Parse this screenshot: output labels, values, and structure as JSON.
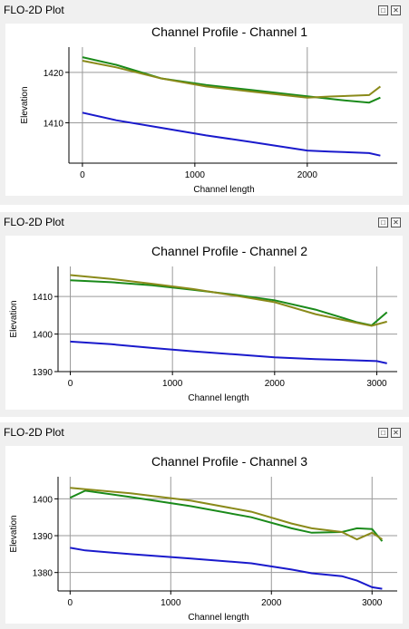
{
  "panels": [
    {
      "title": "FLO-2D Plot",
      "buttons": {
        "float_icon": "restore-icon",
        "close_icon": "close-icon"
      },
      "chart_data": {
        "type": "line",
        "title": "Channel Profile - Channel 1",
        "xlabel": "Channel length",
        "ylabel": "Elevation",
        "xlim": [
          -120,
          2800
        ],
        "ylim": [
          1402,
          1425
        ],
        "xticks": [
          0,
          1000,
          2000
        ],
        "yticks": [
          1410,
          1420
        ],
        "grid": true,
        "series": [
          {
            "color": "#1a8a1a",
            "x": [
              0,
              300,
              700,
              1100,
              1500,
              1900,
              2300,
              2550,
              2650
            ],
            "y": [
              1423,
              1421.5,
              1418.8,
              1417.5,
              1416.5,
              1415.5,
              1414.5,
              1414.0,
              1415.0
            ]
          },
          {
            "color": "#8a8a1a",
            "x": [
              0,
              300,
              700,
              1100,
              1500,
              2000,
              2200,
              2550,
              2650
            ],
            "y": [
              1422.3,
              1421.0,
              1418.8,
              1417.2,
              1416.2,
              1415.0,
              1415.2,
              1415.5,
              1417.2
            ]
          },
          {
            "color": "#1a1acc",
            "x": [
              0,
              300,
              700,
              1100,
              1500,
              2000,
              2200,
              2550,
              2650
            ],
            "y": [
              1412.0,
              1410.5,
              1409.0,
              1407.5,
              1406.2,
              1404.5,
              1404.3,
              1404.0,
              1403.5
            ]
          }
        ]
      }
    },
    {
      "title": "FLO-2D Plot",
      "buttons": {
        "float_icon": "restore-icon",
        "close_icon": "close-icon"
      },
      "chart_data": {
        "type": "line",
        "title": "Channel Profile - Channel 2",
        "xlabel": "Channel length",
        "ylabel": "Elevation",
        "xlim": [
          -120,
          3200
        ],
        "ylim": [
          1390,
          1418
        ],
        "xticks": [
          0,
          1000,
          2000,
          3000
        ],
        "yticks": [
          1390,
          1400,
          1410
        ],
        "grid": true,
        "series": [
          {
            "color": "#1a8a1a",
            "x": [
              0,
              400,
              800,
              1200,
              1600,
              2000,
              2400,
              2800,
              2950,
              3100
            ],
            "y": [
              1414.3,
              1413.8,
              1413.0,
              1411.8,
              1410.5,
              1409.0,
              1406.5,
              1403.2,
              1402.3,
              1405.8
            ]
          },
          {
            "color": "#8a8a1a",
            "x": [
              0,
              400,
              800,
              1200,
              1600,
              2000,
              2400,
              2800,
              2950,
              3100
            ],
            "y": [
              1415.7,
              1414.7,
              1413.4,
              1412.0,
              1410.3,
              1408.5,
              1405.3,
              1403.0,
              1402.2,
              1403.3
            ]
          },
          {
            "color": "#1a1acc",
            "x": [
              0,
              400,
              800,
              1200,
              1600,
              2000,
              2400,
              2800,
              3000,
              3100
            ],
            "y": [
              1398.0,
              1397.3,
              1396.3,
              1395.4,
              1394.6,
              1393.8,
              1393.3,
              1393.0,
              1392.8,
              1392.2
            ]
          }
        ]
      }
    },
    {
      "title": "FLO-2D Plot",
      "buttons": {
        "float_icon": "restore-icon",
        "close_icon": "close-icon"
      },
      "chart_data": {
        "type": "line",
        "title": "Channel Profile - Channel 3",
        "xlabel": "Channel length",
        "ylabel": "Elevation",
        "xlim": [
          -120,
          3250
        ],
        "ylim": [
          1375,
          1406
        ],
        "xticks": [
          0,
          1000,
          2000,
          3000
        ],
        "yticks": [
          1380,
          1390,
          1400
        ],
        "grid": true,
        "series": [
          {
            "color": "#1a8a1a",
            "x": [
              0,
              150,
              600,
              1200,
              1800,
              2200,
              2400,
              2700,
              2850,
              3000,
              3100
            ],
            "y": [
              1400.3,
              1402.2,
              1400.5,
              1398.0,
              1395.0,
              1392.0,
              1390.8,
              1391.0,
              1392.0,
              1391.8,
              1388.5
            ]
          },
          {
            "color": "#8a8a1a",
            "x": [
              0,
              600,
              1200,
              1800,
              2200,
              2400,
              2700,
              2850,
              3000,
              3100
            ],
            "y": [
              1403.0,
              1401.5,
              1399.5,
              1396.5,
              1393.3,
              1392.0,
              1391.0,
              1389.0,
              1390.8,
              1389.0
            ]
          },
          {
            "color": "#1a1acc",
            "x": [
              0,
              150,
              600,
              1200,
              1800,
              2200,
              2400,
              2700,
              2850,
              3000,
              3100
            ],
            "y": [
              1386.7,
              1386.0,
              1385.0,
              1383.8,
              1382.5,
              1380.8,
              1379.8,
              1379.0,
              1377.8,
              1376.0,
              1375.6
            ]
          }
        ]
      }
    }
  ]
}
